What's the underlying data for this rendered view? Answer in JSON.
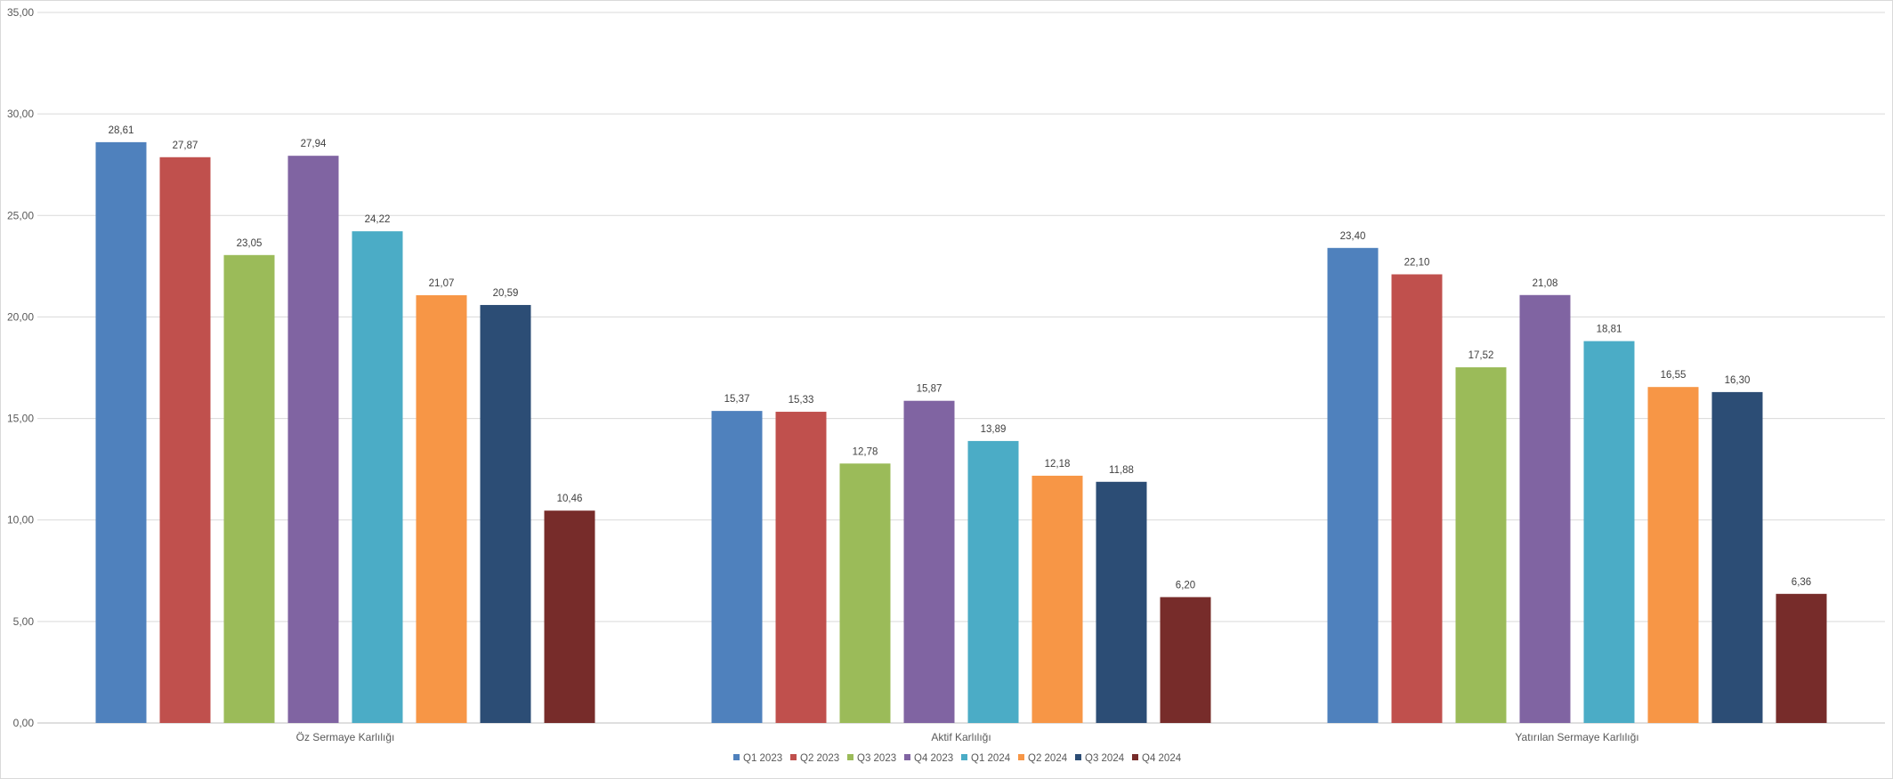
{
  "chart_data": {
    "type": "bar",
    "categories": [
      "Öz Sermaye Karlılığı",
      "Aktif Karlılığı",
      "Yatırılan Sermaye Karlılığı"
    ],
    "series": [
      {
        "name": "Q1 2023",
        "color": "#4F81BD",
        "values": [
          28.61,
          15.37,
          23.4
        ],
        "labels": [
          "28,61",
          "15,37",
          "23,40"
        ]
      },
      {
        "name": "Q2 2023",
        "color": "#C0504D",
        "values": [
          27.87,
          15.33,
          22.1
        ],
        "labels": [
          "27,87",
          "15,33",
          "22,10"
        ]
      },
      {
        "name": "Q3 2023",
        "color": "#9BBB59",
        "values": [
          23.05,
          12.78,
          17.52
        ],
        "labels": [
          "23,05",
          "12,78",
          "17,52"
        ]
      },
      {
        "name": "Q4 2023",
        "color": "#8064A2",
        "values": [
          27.94,
          15.87,
          21.08
        ],
        "labels": [
          "27,94",
          "15,87",
          "21,08"
        ]
      },
      {
        "name": "Q1 2024",
        "color": "#4BACC6",
        "values": [
          24.22,
          13.89,
          18.81
        ],
        "labels": [
          "24,22",
          "13,89",
          "18,81"
        ]
      },
      {
        "name": "Q2 2024",
        "color": "#F79646",
        "values": [
          21.07,
          12.18,
          16.55
        ],
        "labels": [
          "21,07",
          "12,18",
          "16,55"
        ]
      },
      {
        "name": "Q3 2024",
        "color": "#2C4D75",
        "values": [
          20.59,
          11.88,
          16.3
        ],
        "labels": [
          "20,59",
          "11,88",
          "16,30"
        ]
      },
      {
        "name": "Q4 2024",
        "color": "#772C2A",
        "values": [
          10.46,
          6.2,
          6.36
        ],
        "labels": [
          "10,46",
          "6,20",
          "6,36"
        ]
      }
    ],
    "ylim": [
      0,
      35
    ],
    "y_ticks": [
      0,
      5,
      10,
      15,
      20,
      25,
      30,
      35
    ],
    "y_tick_labels": [
      "0,00",
      "5,00",
      "10,00",
      "15,00",
      "20,00",
      "25,00",
      "30,00",
      "35,00"
    ],
    "grid": true,
    "legend_position": "bottom"
  }
}
